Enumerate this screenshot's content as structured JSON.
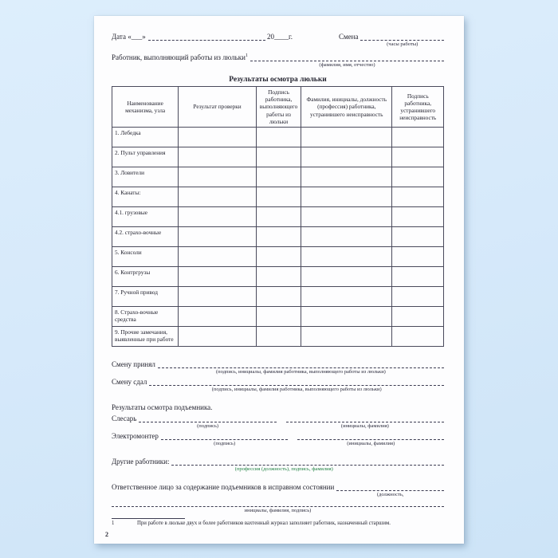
{
  "page": {
    "number": "2"
  },
  "header": {
    "date_label": "Дата «___»",
    "year_label": "20____г.",
    "shift_label": "Смена",
    "shift_caption": "(часы работы)",
    "worker_label": "Работник, выполняющий работы из люльки",
    "worker_footnote_mark": "1",
    "worker_caption": "(фамилия, имя, отчество)"
  },
  "table": {
    "title": "Результаты осмотра люльки",
    "columns": [
      "Наименование механизма, узла",
      "Результат проверки",
      "Подпись работника, выполняющего работы из люльки",
      "Фамилия, инициалы, должность (профессия) работника, устранившего неисправность",
      "Подпись работника, устранившего неисправность"
    ],
    "rows": [
      "1. Лебедка",
      "2. Пульт управления",
      "3. Ловители",
      "4. Канаты:",
      "4.1. грузовые",
      "4.2. страхо-вочные",
      "5. Консоли",
      "6. Контргрузы",
      "7. Ручной привод",
      "8. Страхо-вочные средства",
      "9. Прочие замечания, выявленные при работе"
    ]
  },
  "shift_section": {
    "accepted_label": "Смену принял",
    "accepted_caption": "(подпись, инициалы, фамилия работника, выполняющего работы из люльки)",
    "handed_label": "Смену сдал",
    "handed_caption": "(подпись, инициалы, фамилия работника, выполняющего работы из люльки)"
  },
  "inspection": {
    "title": "Результаты осмотра подъемника.",
    "mechanic_label": "Слесарь",
    "electrician_label": "Электромонтер",
    "signature_caption": "(подпись)",
    "name_caption": "(инициалы, фамилия)"
  },
  "others": {
    "label": "Другие работники:",
    "caption": "(профессия (должность), подпись, фамилия)",
    "caption_color": "#1e8040"
  },
  "responsible": {
    "label": "Ответственное лицо за содержание подъемников в исправном состоянии",
    "caption_line1": "(должность,",
    "caption_line2": "инициалы, фамилия, подпись)"
  },
  "footnote": {
    "marker": "1",
    "text": "При работе в люльке двух и более работников вахтенный журнал заполняет работник, назначенный старшим."
  }
}
